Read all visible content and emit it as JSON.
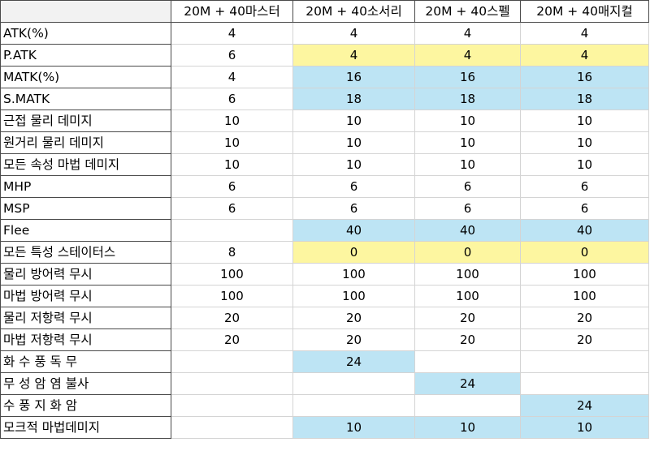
{
  "colors": {
    "yellow_highlight": "#fdf6a0",
    "blue_highlight": "#bde4f4",
    "header_border": "#4a4a4a",
    "grid_line": "#d4d4d4"
  },
  "table": {
    "columns": [
      "20M + 40마스터",
      "20M + 40소서리",
      "20M + 40스펠",
      "20M + 40매지컬"
    ],
    "rows": [
      {
        "label": "ATK(%)",
        "values": [
          "4",
          "4",
          "4",
          "4"
        ],
        "highlight": [
          "",
          "",
          "",
          ""
        ]
      },
      {
        "label": "P.ATK",
        "values": [
          "6",
          "4",
          "4",
          "4"
        ],
        "highlight": [
          "",
          "yellow",
          "yellow",
          "yellow"
        ]
      },
      {
        "label": "MATK(%)",
        "values": [
          "4",
          "16",
          "16",
          "16"
        ],
        "highlight": [
          "",
          "blue",
          "blue",
          "blue"
        ]
      },
      {
        "label": "S.MATK",
        "values": [
          "6",
          "18",
          "18",
          "18"
        ],
        "highlight": [
          "",
          "blue",
          "blue",
          "blue"
        ]
      },
      {
        "label": "근접 물리 데미지",
        "values": [
          "10",
          "10",
          "10",
          "10"
        ],
        "highlight": [
          "",
          "",
          "",
          ""
        ]
      },
      {
        "label": "원거리 물리 데미지",
        "values": [
          "10",
          "10",
          "10",
          "10"
        ],
        "highlight": [
          "",
          "",
          "",
          ""
        ]
      },
      {
        "label": "모든 속성 마법 데미지",
        "values": [
          "10",
          "10",
          "10",
          "10"
        ],
        "highlight": [
          "",
          "",
          "",
          ""
        ]
      },
      {
        "label": "MHP",
        "values": [
          "6",
          "6",
          "6",
          "6"
        ],
        "highlight": [
          "",
          "",
          "",
          ""
        ]
      },
      {
        "label": "MSP",
        "values": [
          "6",
          "6",
          "6",
          "6"
        ],
        "highlight": [
          "",
          "",
          "",
          ""
        ]
      },
      {
        "label": "Flee",
        "values": [
          "",
          "40",
          "40",
          "40"
        ],
        "highlight": [
          "",
          "blue",
          "blue",
          "blue"
        ]
      },
      {
        "label": "모든 특성 스테이터스",
        "values": [
          "8",
          "0",
          "0",
          "0"
        ],
        "highlight": [
          "",
          "yellow",
          "yellow",
          "yellow"
        ]
      },
      {
        "label": "물리 방어력 무시",
        "values": [
          "100",
          "100",
          "100",
          "100"
        ],
        "highlight": [
          "",
          "",
          "",
          ""
        ]
      },
      {
        "label": "마법 방어력 무시",
        "values": [
          "100",
          "100",
          "100",
          "100"
        ],
        "highlight": [
          "",
          "",
          "",
          ""
        ]
      },
      {
        "label": "물리 저항력 무시",
        "values": [
          "20",
          "20",
          "20",
          "20"
        ],
        "highlight": [
          "",
          "",
          "",
          ""
        ]
      },
      {
        "label": "마법 저항력 무시",
        "values": [
          "20",
          "20",
          "20",
          "20"
        ],
        "highlight": [
          "",
          "",
          "",
          ""
        ]
      },
      {
        "label": "화 수 풍 독 무",
        "values": [
          "",
          "24",
          "",
          ""
        ],
        "highlight": [
          "",
          "blue",
          "",
          ""
        ]
      },
      {
        "label": "무 성 암 염 불사",
        "values": [
          "",
          "",
          "24",
          ""
        ],
        "highlight": [
          "",
          "",
          "blue",
          ""
        ]
      },
      {
        "label": "수 풍 지 화 암",
        "values": [
          "",
          "",
          "",
          "24"
        ],
        "highlight": [
          "",
          "",
          "",
          "blue"
        ]
      },
      {
        "label": "모크적 마법데미지",
        "values": [
          "",
          "10",
          "10",
          "10"
        ],
        "highlight": [
          "",
          "blue",
          "blue",
          "blue"
        ]
      }
    ]
  }
}
